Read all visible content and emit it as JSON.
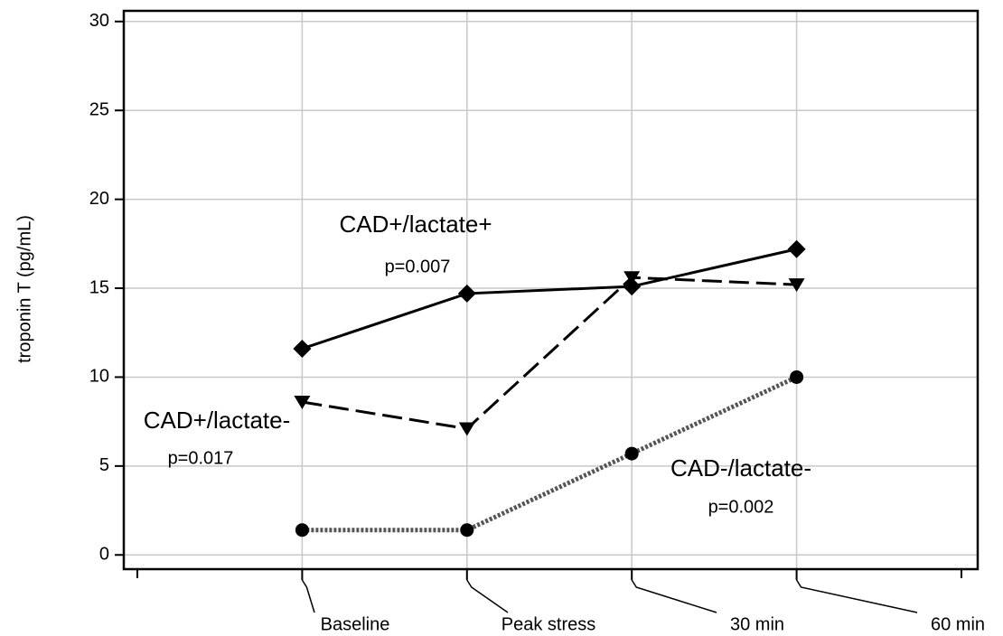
{
  "chart_data": {
    "type": "line",
    "y_label": "troponin T (pg/mL)",
    "categories": [
      null,
      "Baseline",
      "Peak stress",
      "30 min",
      "60 min",
      null
    ],
    "series": [
      {
        "name": "CAD+/lactate+",
        "p_value": "p=0.007",
        "color": "#000000",
        "marker": "diamond",
        "dash": "solid",
        "values": [
          null,
          11.6,
          14.7,
          15.1,
          17.2,
          null
        ]
      },
      {
        "name": "CAD+/lactate-",
        "p_value": "p=0.017",
        "color": "#000000",
        "marker": "triangle-down",
        "dash": "dashed",
        "values": [
          null,
          8.6,
          7.1,
          15.6,
          15.2,
          null
        ]
      },
      {
        "name": "CAD-/lactate-",
        "p_value": "p=0.002",
        "color": "#000000",
        "marker": "circle",
        "dash": "dotted",
        "values": [
          null,
          1.4,
          1.4,
          5.7,
          10.0,
          null
        ]
      }
    ],
    "ylim": [
      -0.8,
      30.6
    ],
    "yticks": [
      0,
      5,
      10,
      15,
      20,
      25,
      30
    ],
    "grid": true
  }
}
